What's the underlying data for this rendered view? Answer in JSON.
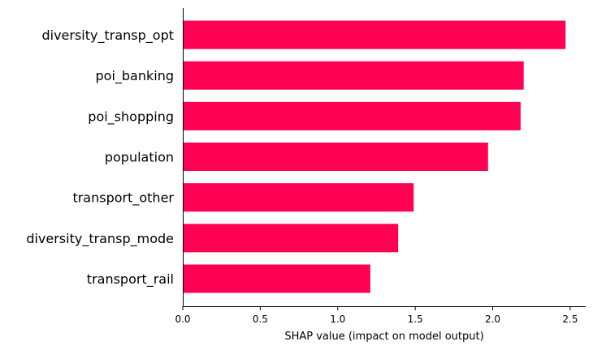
{
  "chart_data": {
    "type": "bar",
    "orientation": "horizontal",
    "categories": [
      "diversity_transp_opt",
      "poi_banking",
      "poi_shopping",
      "population",
      "transport_other",
      "diversity_transp_mode",
      "transport_rail"
    ],
    "values": [
      2.47,
      2.2,
      2.18,
      1.97,
      1.49,
      1.39,
      1.21
    ],
    "xlabel": "SHAP value (impact on model output)",
    "ylabel": "",
    "xlim": [
      0,
      2.6
    ],
    "xticks": [
      0.0,
      0.5,
      1.0,
      1.5,
      2.0,
      2.5
    ],
    "xtick_labels": [
      "0.0",
      "0.5",
      "1.0",
      "1.5",
      "2.0",
      "2.5"
    ],
    "grid": false,
    "bar_color": "#ff0052"
  }
}
